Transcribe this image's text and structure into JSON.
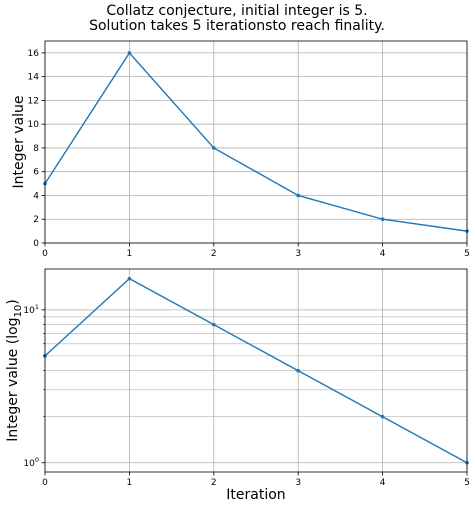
{
  "title_lines": [
    "Collatz conjecture, initial integer is 5.",
    "Solution takes 5 iterationsto reach finality."
  ],
  "chart_data": [
    {
      "type": "line",
      "x": [
        0,
        1,
        2,
        3,
        4,
        5
      ],
      "series": [
        {
          "values": [
            5,
            16,
            8,
            4,
            2,
            1
          ]
        }
      ],
      "xlabel": "",
      "ylabel": "Integer value",
      "xlim": [
        0,
        5
      ],
      "ylim": [
        0,
        17
      ],
      "xticks": [
        0,
        1,
        2,
        3,
        4,
        5
      ],
      "yticks": [
        0,
        2,
        4,
        6,
        8,
        10,
        12,
        14,
        16
      ],
      "yscale": "linear",
      "grid": true,
      "line_color": "#1f77b4"
    },
    {
      "type": "line",
      "x": [
        0,
        1,
        2,
        3,
        4,
        5
      ],
      "series": [
        {
          "values": [
            5,
            16,
            8,
            4,
            2,
            1
          ]
        }
      ],
      "xlabel": "Iteration",
      "ylabel_text": "Integer value (log",
      "ylabel_sub": "10",
      "ylabel_end": ")",
      "xlim": [
        0,
        5
      ],
      "ylim": [
        0.87,
        18.5
      ],
      "xticks": [
        0,
        1,
        2,
        3,
        4,
        5
      ],
      "yticks_major": [
        {
          "value": 1,
          "base": "10",
          "exp": "0"
        },
        {
          "value": 10,
          "base": "10",
          "exp": "1"
        }
      ],
      "yticks_minor": [
        2,
        3,
        4,
        5,
        6,
        7,
        8,
        9
      ],
      "yscale": "log",
      "grid": true,
      "line_color": "#1f77b4"
    }
  ]
}
